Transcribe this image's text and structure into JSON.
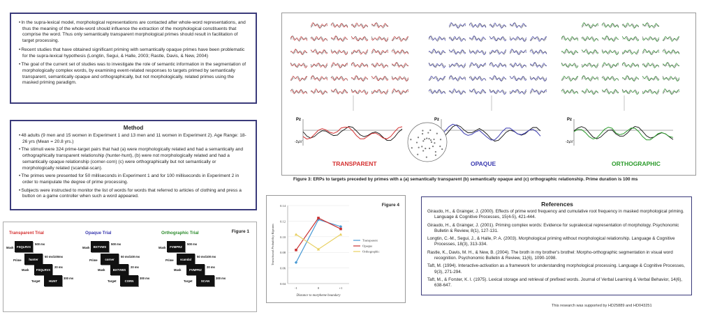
{
  "intro": {
    "bullets": [
      "In the supra-lexical model, morphological representations are contacted after whole-word representations, and thus the meaning of the whole-word should influence the extraction of the morphological constituents that comprise the word.  Thus only semantically transparent morphological primes should result in facilitation of target processing.",
      "Recent studies that have obtained significant priming with semantically opaque primes have been problematic for the supra-lexical hypothesis (Longtin, Segui, & Halle, 2003; Rastle, Davis, & New, 2004)",
      "The goal of the current set of studies was to investigate the role of semantic information in the segmentation of morphologically complex words, by examining event-related responses to targets primed by semantically transparent, semantically opaque and orthographically, but not morphologically, related primes using the masked priming paradigm."
    ]
  },
  "method": {
    "heading": "Method",
    "bullets": [
      "48 adults (9 men and 15 women in Experiment 1 and 13 men and 11 women in Experiment 2). Age Range: 18-26 yrs (Mean = 20.8 yrs.)",
      "The stimuli were 324 prime-target pairs that had (a)  were morphologically related and had a semantically and orthographically transparent relationship (hunter-hunt), (b) were not morphologically related and had a semantically opaque relationship (corner-corn) (c) were orthographically but not semantically or morphologically related (scandal-scan).",
      "The primes were presented for 50 milliseconds in Experiment 1 and for 100 milliseconds in Experiment 2 in order to manipulate the degree of prime processing.",
      "Subjects were instructed to monitor the list of words for words that referred to articles of clothing and press a button on a game controller when such a word appeared."
    ]
  },
  "figure1": {
    "label": "Figure 1",
    "trials": [
      {
        "title": "Transparent Trial",
        "color": "#d43030",
        "mask": "FSQLRVX",
        "prime": "hunter",
        "mask2": "FSQLRVX",
        "target": "HUNT",
        "t1": "500 ms",
        "t2": "50 ms/100ms",
        "t3": "20 ms",
        "t4": "300 ms"
      },
      {
        "title": "Opaque Trial",
        "color": "#3a3ab0",
        "mask": "BXTVWS",
        "prime": "corner",
        "mask2": "BXTVWS",
        "target": "CORN",
        "t1": "500 ms",
        "t2": "50 ms/100 ms",
        "t3": "20 ms",
        "t4": "300 ms"
      },
      {
        "title": "Orthographic Trial",
        "color": "#2a8a2a",
        "mask": "FVMPRZ",
        "prime": "scandal",
        "mask2": "FVMPRZ",
        "target": "SCAN",
        "t1": "500 ms",
        "t2": "50 ms/100 ms",
        "t3": "20 ms",
        "t4": "300 ms"
      }
    ],
    "row_labels": {
      "mask": "Mask",
      "prime": "Prime",
      "target": "Target"
    }
  },
  "figure3": {
    "caption": "Figure 3: ERPs to targets preceded by primes with a (a) semantically transparent (b) semantically opaque and (c) orthographic relationship. Prime duration is 100 ms",
    "panels": [
      {
        "label": "TRANSPARENT",
        "color": "#d43030"
      },
      {
        "label": "OPAQUE",
        "color": "#3a3ab0"
      },
      {
        "label": "ORTHOGRAPHIC",
        "color": "#2a9a2a"
      }
    ],
    "pz_label": "Pz",
    "uv_label": "-2µV"
  },
  "figure4": {
    "label": "Figure 4",
    "colors": {
      "transparent": "#4a9ad4",
      "opaque": "#c83030",
      "orthographic": "#e8d060"
    }
  },
  "chart_data": {
    "type": "line",
    "title": "",
    "xlabel": "Distance to morpheme boundary",
    "ylabel": "Transitional Probability Bigrams",
    "categories": [
      "-1",
      "0",
      "+1"
    ],
    "ylim": [
      0.04,
      0.14
    ],
    "yticks": [
      "0.04",
      "0.06",
      "0.08",
      "0.10",
      "0.12",
      "0.14"
    ],
    "legend_position": "right",
    "series": [
      {
        "name": "Transparent",
        "values": [
          0.067,
          0.122,
          0.113
        ]
      },
      {
        "name": "Opaque",
        "values": [
          0.083,
          0.124,
          0.11
        ]
      },
      {
        "name": "Orthographic",
        "values": [
          0.103,
          0.084,
          0.103
        ]
      }
    ]
  },
  "references": {
    "heading": "References",
    "items": [
      "Giraudo, H., & Grainger, J. (2000). Effects of prime word frequency and cumulative root frequency in masked morphological priming. Language & Cognitive Processes, 15(4-5), 421-444.",
      "Giraudo, H., & Grainger, J. (2001). Priming complex words: Evidence for supralexical representation of morphology. Psychonomic Bulletin & Review, 8(1), 127-131.",
      "Longtin, C.-M., Segui, J., & Halle, P. A. (2003). Morphological priming without morphological relationship. Language & Cognitive Processes, 18(3), 313-334.",
      "Rastle, K., Davis, M. H., & New, B. (2004). The broth in my brother's brothel: Morpho-orthographic segmentation in visual word recognition. Psychonomic Bulletin & Review, 11(6), 1090-1098.",
      "Taft, M. (1994). Interactive-activation as a framework for understanding morphological processing. Language & Cognitive Processes, 9(3), 271-294.",
      "Taft, M., & Forster, K. I. (1975). Lexical storage and retrieval of prefixed words. Journal of Verbal Learning & Verbal Behavior, 14(6), 638-647."
    ]
  },
  "footer": {
    "support": "This research was supported by HD25889 and HD043251"
  }
}
